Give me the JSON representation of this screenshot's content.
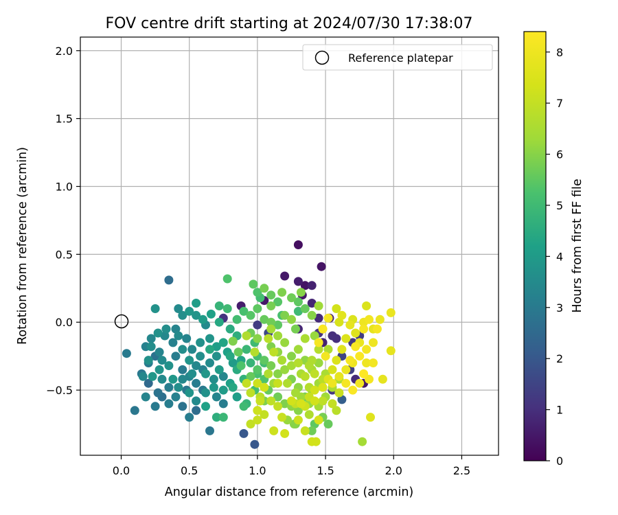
{
  "chart_data": {
    "type": "scatter",
    "title": "FOV centre drift starting at 2024/07/30 17:38:07",
    "xlabel": "Angular distance from reference (arcmin)",
    "ylabel": "Rotation from reference (arcmin)",
    "xlim": [
      -0.3,
      2.77
    ],
    "ylim": [
      -0.98,
      2.1
    ],
    "xticks": [
      "0.0",
      "0.5",
      "1.0",
      "1.5",
      "2.0",
      "2.5"
    ],
    "xtick_values": [
      0.0,
      0.5,
      1.0,
      1.5,
      2.0,
      2.5
    ],
    "yticks": [
      "−0.5",
      "0.0",
      "0.5",
      "1.0",
      "1.5",
      "2.0"
    ],
    "ytick_values": [
      -0.5,
      0.0,
      0.5,
      1.0,
      1.5,
      2.0
    ],
    "grid": true,
    "legend": {
      "placement": "top-right",
      "entries": [
        "Reference platepar"
      ]
    },
    "reference_point": {
      "x": 0.0,
      "y": 0.0,
      "marker": "open-circle"
    },
    "colorbar": {
      "label": "Hours from first FF file",
      "range": [
        0,
        8.4
      ],
      "ticks": [
        "0",
        "1",
        "2",
        "3",
        "4",
        "5",
        "6",
        "7",
        "8"
      ],
      "tick_values": [
        0,
        1,
        2,
        3,
        4,
        5,
        6,
        7,
        8
      ],
      "colormap": "viridis"
    },
    "points": [
      [
        1.3,
        0.57,
        0.3
      ],
      [
        1.47,
        0.41,
        0.4
      ],
      [
        1.2,
        0.34,
        0.5
      ],
      [
        1.3,
        0.3,
        0.6
      ],
      [
        1.35,
        0.27,
        0.4
      ],
      [
        1.4,
        0.27,
        0.7
      ],
      [
        1.33,
        0.2,
        0.5
      ],
      [
        1.4,
        0.14,
        0.8
      ],
      [
        1.05,
        0.16,
        0.5
      ],
      [
        0.88,
        0.12,
        0.6
      ],
      [
        1.45,
        0.03,
        0.9
      ],
      [
        1.53,
        0.03,
        0.8
      ],
      [
        1.55,
        -0.1,
        1.0
      ],
      [
        1.45,
        -0.08,
        1.1
      ],
      [
        1.48,
        -0.15,
        0.7
      ],
      [
        1.3,
        -0.05,
        0.8
      ],
      [
        1.75,
        -0.1,
        1.3
      ],
      [
        1.7,
        -0.15,
        1.2
      ],
      [
        1.78,
        -0.45,
        0.5
      ],
      [
        1.68,
        -0.35,
        1.4
      ],
      [
        1.58,
        -0.12,
        1.0
      ],
      [
        1.62,
        -0.25,
        1.5
      ],
      [
        1.72,
        -0.42,
        0.9
      ],
      [
        1.55,
        -0.5,
        1.2
      ],
      [
        0.9,
        -0.82,
        2.0
      ],
      [
        0.98,
        -0.9,
        2.0
      ],
      [
        0.75,
        0.03,
        1.1
      ],
      [
        1.0,
        -0.02,
        1.3
      ],
      [
        1.08,
        -0.08,
        1.6
      ],
      [
        1.62,
        -0.57,
        2.2
      ],
      [
        0.35,
        0.31,
        2.6
      ],
      [
        0.25,
        -0.25,
        2.8
      ],
      [
        0.1,
        -0.65,
        2.9
      ],
      [
        0.04,
        -0.23,
        3.0
      ],
      [
        0.15,
        -0.38,
        2.9
      ],
      [
        0.2,
        -0.45,
        2.5
      ],
      [
        0.3,
        -0.55,
        2.7
      ],
      [
        0.35,
        -0.6,
        3.1
      ],
      [
        0.45,
        -0.62,
        2.8
      ],
      [
        0.55,
        -0.65,
        2.6
      ],
      [
        0.5,
        -0.7,
        3.1
      ],
      [
        0.65,
        -0.8,
        2.9
      ],
      [
        0.25,
        -0.62,
        3.0
      ],
      [
        0.18,
        -0.18,
        3.2
      ],
      [
        0.2,
        -0.3,
        3.0
      ],
      [
        0.27,
        -0.52,
        2.8
      ],
      [
        0.4,
        -0.55,
        3.2
      ],
      [
        0.45,
        -0.35,
        3.0
      ],
      [
        0.5,
        -0.4,
        3.3
      ],
      [
        0.55,
        -0.45,
        3.1
      ],
      [
        0.32,
        -0.1,
        3.4
      ],
      [
        0.38,
        -0.15,
        3.2
      ],
      [
        0.42,
        -0.1,
        3.5
      ],
      [
        0.48,
        -0.12,
        3.3
      ],
      [
        0.52,
        -0.2,
        3.4
      ],
      [
        0.58,
        -0.25,
        3.6
      ],
      [
        0.6,
        -0.35,
        3.2
      ],
      [
        0.65,
        -0.3,
        3.5
      ],
      [
        0.7,
        -0.25,
        3.7
      ],
      [
        0.75,
        -0.4,
        3.4
      ],
      [
        0.6,
        -0.5,
        3.0
      ],
      [
        0.7,
        -0.55,
        3.3
      ],
      [
        0.75,
        -0.6,
        3.1
      ],
      [
        0.48,
        -0.5,
        2.9
      ],
      [
        0.22,
        -0.18,
        3.6
      ],
      [
        0.28,
        -0.22,
        3.3
      ],
      [
        0.3,
        -0.28,
        3.5
      ],
      [
        0.35,
        -0.32,
        3.7
      ],
      [
        0.4,
        -0.25,
        3.1
      ],
      [
        0.45,
        -0.2,
        3.6
      ],
      [
        0.5,
        -0.28,
        3.8
      ],
      [
        0.55,
        -0.32,
        3.4
      ],
      [
        0.62,
        -0.38,
        3.9
      ],
      [
        0.68,
        -0.42,
        3.6
      ],
      [
        0.72,
        -0.35,
        4.0
      ],
      [
        0.58,
        -0.15,
        3.7
      ],
      [
        0.65,
        -0.12,
        3.8
      ],
      [
        0.7,
        -0.18,
        4.1
      ],
      [
        0.78,
        -0.22,
        4.2
      ],
      [
        0.82,
        -0.3,
        4.0
      ],
      [
        0.88,
        -0.28,
        4.3
      ],
      [
        0.28,
        -0.35,
        3.8
      ],
      [
        0.38,
        -0.42,
        3.9
      ],
      [
        0.42,
        -0.48,
        3.6
      ],
      [
        0.5,
        -0.52,
        3.8
      ],
      [
        0.55,
        -0.58,
        3.5
      ],
      [
        0.62,
        -0.52,
        3.7
      ],
      [
        0.68,
        -0.48,
        3.9
      ],
      [
        0.75,
        -0.5,
        4.0
      ],
      [
        0.8,
        -0.45,
        4.2
      ],
      [
        0.85,
        -0.55,
        4.1
      ],
      [
        0.62,
        -0.02,
        3.5
      ],
      [
        0.55,
        0.05,
        3.8
      ],
      [
        0.6,
        0.02,
        4.0
      ],
      [
        0.66,
        0.06,
        4.2
      ],
      [
        0.72,
        0.0,
        4.4
      ],
      [
        0.8,
        -0.05,
        4.5
      ],
      [
        0.85,
        -0.1,
        4.6
      ],
      [
        0.42,
        0.1,
        3.5
      ],
      [
        0.45,
        0.05,
        3.6
      ],
      [
        0.5,
        0.08,
        3.9
      ],
      [
        0.55,
        0.14,
        4.1
      ],
      [
        0.4,
        -0.05,
        3.3
      ],
      [
        0.33,
        -0.05,
        3.6
      ],
      [
        0.27,
        -0.08,
        3.7
      ],
      [
        0.22,
        -0.12,
        3.4
      ],
      [
        0.25,
        0.1,
        3.7
      ],
      [
        0.2,
        -0.28,
        3.7
      ],
      [
        0.23,
        -0.4,
        3.9
      ],
      [
        0.16,
        -0.4,
        3.4
      ],
      [
        0.18,
        -0.55,
        3.3
      ],
      [
        0.3,
        -0.42,
        3.5
      ],
      [
        0.35,
        -0.48,
        3.1
      ],
      [
        0.45,
        -0.42,
        3.4
      ],
      [
        0.52,
        -0.38,
        3.6
      ],
      [
        0.65,
        -0.2,
        4.4
      ],
      [
        0.75,
        -0.15,
        4.3
      ],
      [
        0.8,
        -0.25,
        4.4
      ],
      [
        0.85,
        -0.35,
        4.5
      ],
      [
        0.9,
        -0.42,
        4.7
      ],
      [
        0.95,
        -0.3,
        4.8
      ],
      [
        0.92,
        -0.2,
        4.9
      ],
      [
        0.98,
        -0.15,
        5.0
      ],
      [
        1.0,
        -0.25,
        5.1
      ],
      [
        1.05,
        -0.3,
        5.0
      ],
      [
        1.0,
        -0.38,
        5.2
      ],
      [
        1.05,
        -0.42,
        5.3
      ],
      [
        0.98,
        -0.5,
        5.1
      ],
      [
        0.92,
        -0.6,
        4.8
      ],
      [
        0.75,
        -0.7,
        4.9
      ],
      [
        0.7,
        -0.7,
        4.6
      ],
      [
        0.9,
        -0.62,
        5.0
      ],
      [
        0.97,
        0.28,
        5.5
      ],
      [
        1.0,
        0.22,
        5.3
      ],
      [
        1.05,
        0.25,
        5.8
      ],
      [
        1.1,
        0.2,
        5.6
      ],
      [
        1.15,
        0.15,
        5.4
      ],
      [
        1.18,
        0.22,
        5.9
      ],
      [
        1.25,
        0.18,
        5.7
      ],
      [
        1.3,
        0.15,
        5.5
      ],
      [
        1.32,
        0.22,
        6.0
      ],
      [
        1.1,
        0.12,
        5.8
      ],
      [
        1.0,
        0.1,
        5.5
      ],
      [
        0.95,
        0.05,
        5.4
      ],
      [
        0.9,
        0.08,
        5.2
      ],
      [
        0.85,
        0.02,
        5.1
      ],
      [
        0.78,
        0.1,
        5.0
      ],
      [
        0.72,
        0.12,
        4.8
      ],
      [
        1.05,
        0.02,
        5.6
      ],
      [
        1.1,
        0.0,
        5.7
      ],
      [
        1.15,
        -0.02,
        5.5
      ],
      [
        1.2,
        0.05,
        5.9
      ],
      [
        1.25,
        0.02,
        6.1
      ],
      [
        1.28,
        -0.05,
        5.8
      ],
      [
        1.35,
        0.1,
        5.6
      ],
      [
        1.4,
        0.05,
        6.0
      ],
      [
        0.78,
        0.32,
        5.3
      ],
      [
        0.95,
        -0.08,
        5.7
      ],
      [
        1.0,
        -0.12,
        6.0
      ],
      [
        1.1,
        -0.18,
        5.9
      ],
      [
        1.15,
        -0.22,
        6.1
      ],
      [
        1.2,
        -0.15,
        6.2
      ],
      [
        1.25,
        -0.25,
        6.0
      ],
      [
        1.3,
        -0.2,
        6.3
      ],
      [
        1.35,
        -0.28,
        6.1
      ],
      [
        1.4,
        -0.35,
        6.4
      ],
      [
        1.45,
        -0.3,
        6.2
      ],
      [
        1.5,
        -0.38,
        6.5
      ],
      [
        1.45,
        -0.45,
        6.3
      ],
      [
        1.4,
        -0.5,
        6.0
      ],
      [
        1.35,
        -0.55,
        5.8
      ],
      [
        1.3,
        -0.48,
        6.1
      ],
      [
        1.25,
        -0.42,
        5.9
      ],
      [
        1.2,
        -0.35,
        6.2
      ],
      [
        1.15,
        -0.38,
        6.0
      ],
      [
        1.1,
        -0.32,
        5.8
      ],
      [
        1.05,
        -0.28,
        5.5
      ],
      [
        1.0,
        -0.35,
        5.4
      ],
      [
        1.08,
        -0.5,
        5.6
      ],
      [
        1.15,
        -0.55,
        5.7
      ],
      [
        1.2,
        -0.6,
        5.9
      ],
      [
        1.25,
        -0.62,
        6.1
      ],
      [
        1.3,
        -0.65,
        6.0
      ],
      [
        1.38,
        -0.6,
        6.2
      ],
      [
        1.45,
        -0.62,
        6.4
      ],
      [
        1.5,
        -0.55,
        6.3
      ],
      [
        1.55,
        -0.48,
        6.5
      ],
      [
        1.48,
        -0.7,
        5.8
      ],
      [
        1.42,
        -0.75,
        5.5
      ],
      [
        1.52,
        -0.75,
        5.6
      ],
      [
        1.38,
        -0.68,
        6.6
      ],
      [
        1.28,
        -0.75,
        5.9
      ],
      [
        1.22,
        -0.72,
        6.2
      ],
      [
        1.3,
        -0.3,
        6.7
      ],
      [
        1.35,
        -0.4,
        6.8
      ],
      [
        1.4,
        -0.28,
        6.6
      ],
      [
        1.45,
        -0.2,
        6.7
      ],
      [
        1.42,
        -0.38,
        6.9
      ],
      [
        1.38,
        -0.32,
        6.6
      ],
      [
        1.32,
        -0.38,
        6.5
      ],
      [
        1.25,
        -0.32,
        6.4
      ],
      [
        1.18,
        -0.28,
        6.5
      ],
      [
        1.22,
        -0.45,
        6.6
      ],
      [
        1.28,
        -0.52,
        6.4
      ],
      [
        1.32,
        -0.55,
        6.3
      ],
      [
        1.38,
        -0.48,
        6.7
      ],
      [
        1.12,
        -0.45,
        6.3
      ],
      [
        1.08,
        -0.38,
        6.6
      ],
      [
        1.6,
        -0.42,
        6.5
      ],
      [
        1.48,
        -0.42,
        6.8
      ],
      [
        1.02,
        -0.55,
        6.8
      ],
      [
        1.0,
        -0.65,
        6.9
      ],
      [
        1.05,
        -0.68,
        7.0
      ],
      [
        1.0,
        -0.72,
        7.1
      ],
      [
        0.95,
        -0.75,
        7.0
      ],
      [
        1.1,
        -0.58,
        6.9
      ],
      [
        1.15,
        -0.62,
        7.0
      ],
      [
        1.18,
        -0.7,
        7.1
      ],
      [
        1.12,
        -0.8,
        7.2
      ],
      [
        1.2,
        -0.82,
        7.3
      ],
      [
        1.3,
        -0.72,
        7.2
      ],
      [
        1.35,
        -0.8,
        7.1
      ],
      [
        1.4,
        -0.88,
        7.3
      ],
      [
        1.45,
        -0.72,
        7.4
      ],
      [
        1.28,
        -0.6,
        7.0
      ],
      [
        1.35,
        -0.62,
        7.2
      ],
      [
        1.38,
        -0.55,
        7.1
      ],
      [
        1.42,
        -0.58,
        7.3
      ],
      [
        1.02,
        -0.58,
        7.1
      ],
      [
        1.0,
        -0.65,
        7.2
      ],
      [
        0.95,
        -0.52,
        6.9
      ],
      [
        0.92,
        -0.45,
        7.0
      ],
      [
        1.0,
        -0.45,
        7.2
      ],
      [
        1.05,
        -0.48,
        7.3
      ],
      [
        1.15,
        -0.45,
        7.1
      ],
      [
        1.25,
        -0.58,
        7.3
      ],
      [
        1.32,
        -0.6,
        7.4
      ],
      [
        1.42,
        -0.5,
        7.3
      ],
      [
        1.48,
        -0.48,
        7.5
      ],
      [
        1.52,
        -0.42,
        7.6
      ],
      [
        1.55,
        -0.35,
        7.4
      ],
      [
        1.58,
        -0.28,
        7.5
      ],
      [
        1.62,
        -0.2,
        7.6
      ],
      [
        1.65,
        -0.12,
        7.5
      ],
      [
        1.58,
        0.1,
        7.3
      ],
      [
        1.6,
        0.0,
        7.4
      ],
      [
        1.62,
        0.05,
        7.7
      ],
      [
        1.68,
        -0.02,
        7.8
      ],
      [
        1.7,
        0.02,
        7.5
      ],
      [
        1.72,
        -0.08,
        7.6
      ],
      [
        1.75,
        -0.15,
        7.9
      ],
      [
        1.78,
        0.0,
        8.0
      ],
      [
        1.8,
        0.12,
        7.5
      ],
      [
        1.82,
        0.02,
        8.1
      ],
      [
        1.85,
        -0.05,
        7.8
      ],
      [
        1.88,
        -0.05,
        8.2
      ],
      [
        1.9,
        0.02,
        7.9
      ],
      [
        1.85,
        -0.15,
        8.0
      ],
      [
        1.8,
        -0.2,
        8.1
      ],
      [
        1.75,
        -0.25,
        8.3
      ],
      [
        1.7,
        -0.3,
        8.0
      ],
      [
        1.65,
        -0.35,
        7.9
      ],
      [
        1.6,
        -0.4,
        7.8
      ],
      [
        1.55,
        -0.45,
        8.0
      ],
      [
        1.5,
        -0.25,
        8.1
      ],
      [
        1.45,
        -0.15,
        8.2
      ],
      [
        1.48,
        -0.05,
        8.3
      ],
      [
        1.52,
        0.03,
        8.1
      ],
      [
        1.65,
        -0.45,
        8.2
      ],
      [
        1.7,
        -0.5,
        8.3
      ],
      [
        1.78,
        -0.38,
        8.4
      ],
      [
        1.82,
        -0.42,
        8.2
      ],
      [
        1.85,
        -0.3,
        8.1
      ],
      [
        1.8,
        -0.3,
        8.0
      ],
      [
        1.75,
        -0.45,
        8.1
      ],
      [
        1.68,
        -0.28,
        8.2
      ],
      [
        1.72,
        -0.18,
        8.3
      ],
      [
        1.78,
        -0.05,
        8.2
      ],
      [
        1.92,
        -0.42,
        7.8
      ],
      [
        1.98,
        0.07,
        7.9
      ],
      [
        1.98,
        -0.21,
        7.8
      ],
      [
        1.83,
        -0.7,
        7.6
      ],
      [
        1.77,
        -0.88,
        6.4
      ],
      [
        1.43,
        -0.88,
        7.3
      ],
      [
        1.27,
        -0.75,
        6.0
      ],
      [
        1.4,
        -0.8,
        5.7
      ],
      [
        1.45,
        0.12,
        6.3
      ],
      [
        0.62,
        -0.62,
        4.2
      ],
      [
        0.82,
        -0.48,
        4.4
      ],
      [
        1.05,
        -0.58,
        5.9
      ],
      [
        1.15,
        -0.1,
        6.3
      ],
      [
        1.18,
        0.05,
        5.2
      ],
      [
        1.3,
        0.08,
        5.0
      ],
      [
        1.02,
        0.18,
        5.1
      ],
      [
        1.1,
        -0.05,
        6.4
      ],
      [
        1.35,
        -0.12,
        6.5
      ],
      [
        1.42,
        -0.1,
        6.2
      ],
      [
        1.52,
        -0.2,
        6.6
      ],
      [
        1.48,
        -0.58,
        6.9
      ],
      [
        1.55,
        -0.6,
        7.0
      ],
      [
        1.6,
        -0.52,
        7.1
      ],
      [
        1.58,
        -0.65,
        6.8
      ],
      [
        1.12,
        -0.22,
        6.9
      ],
      [
        1.08,
        -0.12,
        6.8
      ],
      [
        0.98,
        -0.22,
        6.7
      ],
      [
        0.92,
        -0.1,
        6.6
      ],
      [
        0.82,
        -0.14,
        5.9
      ],
      [
        0.86,
        -0.22,
        5.6
      ],
      [
        0.88,
        -0.32,
        5.3
      ],
      [
        0.95,
        -0.4,
        5.6
      ]
    ]
  }
}
